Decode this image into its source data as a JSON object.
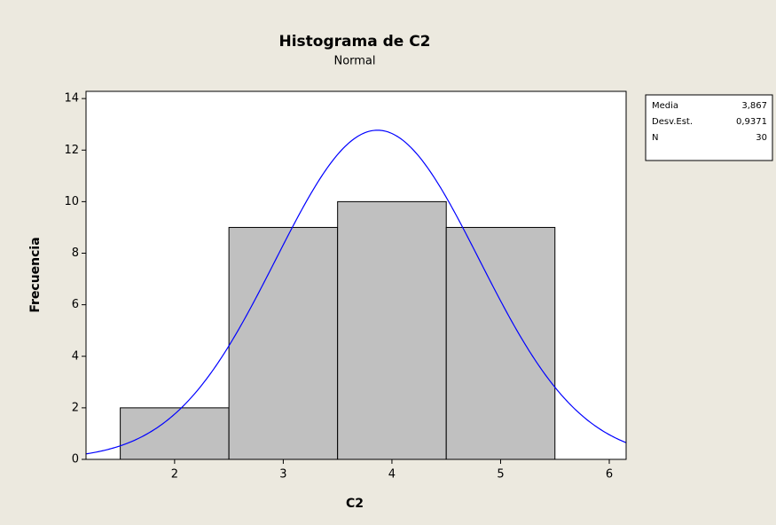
{
  "chart_data": {
    "type": "histogram",
    "title": "Histograma de C2",
    "subtitle": "Normal",
    "x_label": "C2",
    "y_label": "Frecuencia",
    "bins": [
      1.5,
      2.5,
      3.5,
      4.5,
      5.5
    ],
    "counts": [
      2,
      9,
      10,
      9
    ],
    "bar_color": "#c0c0c0",
    "curve_color": "#0000ff",
    "xlim": [
      1.185,
      6.155
    ],
    "xticks": [
      2,
      3,
      4,
      5,
      6
    ],
    "ylim": [
      0,
      14.28
    ],
    "yticks": [
      0,
      2,
      4,
      6,
      8,
      10,
      12,
      14
    ],
    "stats": [
      {
        "name": "Media",
        "value": 3.867,
        "label": "3,867"
      },
      {
        "name": "Desv.Est.",
        "value": 0.9371,
        "label": "0,9371"
      },
      {
        "name": "N",
        "value": 30
      }
    ]
  }
}
